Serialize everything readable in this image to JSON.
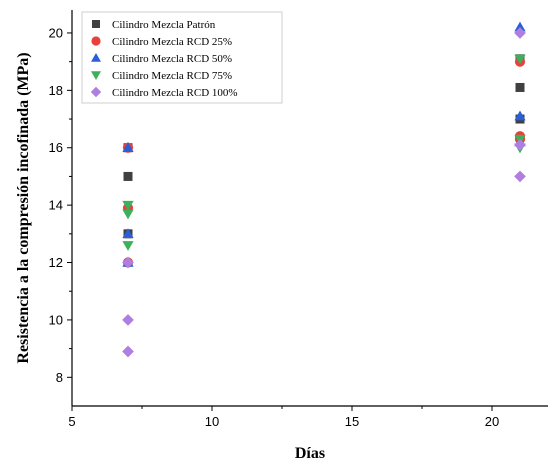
{
  "chart_data": {
    "type": "scatter",
    "title": "",
    "xlabel": "Días",
    "ylabel": "Resistencia a la compresión incofinada (MPa)",
    "xlim": [
      5,
      22
    ],
    "ylim": [
      7,
      20.8
    ],
    "xticks": [
      5,
      10,
      15,
      20
    ],
    "yticks": [
      8,
      10,
      12,
      14,
      16,
      18,
      20
    ],
    "grid": false,
    "legend_position": "top-left",
    "series": [
      {
        "name": "Cilindro Mezcla Patrón",
        "marker": "square",
        "color": "#404040",
        "points": [
          [
            7,
            16
          ],
          [
            7,
            15
          ],
          [
            7,
            13
          ],
          [
            21,
            19.1
          ],
          [
            21,
            18.1
          ],
          [
            21,
            17
          ]
        ]
      },
      {
        "name": "Cilindro Mezcla RCD 25%",
        "marker": "circle",
        "color": "#e8413c",
        "points": [
          [
            7,
            16
          ],
          [
            7,
            13.9
          ],
          [
            7,
            12
          ],
          [
            21,
            19
          ],
          [
            21,
            16.4
          ],
          [
            21,
            16.3
          ]
        ]
      },
      {
        "name": "Cilindro Mezcla RCD 50%",
        "marker": "triangle-up",
        "color": "#2a5fd6",
        "points": [
          [
            7,
            16
          ],
          [
            7,
            13
          ],
          [
            7,
            12
          ],
          [
            21,
            20.2
          ],
          [
            21,
            17.1
          ],
          [
            21,
            16.2
          ]
        ]
      },
      {
        "name": "Cilindro Mezcla RCD 75%",
        "marker": "triangle-down",
        "color": "#3cb05a",
        "points": [
          [
            7,
            14
          ],
          [
            7,
            13.7
          ],
          [
            7,
            12.6
          ],
          [
            21,
            19.1
          ],
          [
            21,
            16
          ],
          [
            21,
            16.3
          ]
        ]
      },
      {
        "name": "Cilindro Mezcla RCD 100%",
        "marker": "diamond",
        "color": "#b07ee0",
        "points": [
          [
            7,
            12
          ],
          [
            7,
            10
          ],
          [
            7,
            8.9
          ],
          [
            21,
            20
          ],
          [
            21,
            16.1
          ],
          [
            21,
            15
          ]
        ]
      }
    ]
  }
}
